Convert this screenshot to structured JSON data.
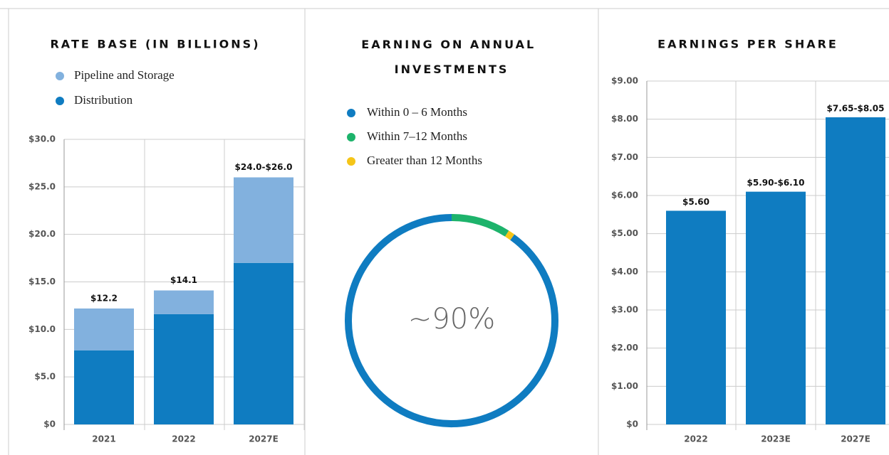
{
  "chart_data": [
    {
      "type": "stacked-bar",
      "title": "RATE BASE (IN BILLIONS)",
      "categories": [
        "2021",
        "2022",
        "2027E"
      ],
      "series": [
        {
          "name": "Pipeline and Storage",
          "color": "#82b1de",
          "values": [
            4.4,
            2.5,
            9.0
          ]
        },
        {
          "name": "Distribution",
          "color": "#0f7cc1",
          "values": [
            7.8,
            11.6,
            17.0
          ]
        }
      ],
      "totals": [
        12.2,
        14.1,
        26.0
      ],
      "total_labels": [
        "$12.2",
        "$14.1",
        "$24.0-$26.0"
      ],
      "ylim": [
        0,
        30
      ],
      "yticks": [
        {
          "value": 0,
          "label": "$0"
        },
        {
          "value": 5,
          "label": "$5.0"
        },
        {
          "value": 10,
          "label": "$10.0"
        },
        {
          "value": 15,
          "label": "$15.0"
        },
        {
          "value": 20,
          "label": "$20.0"
        },
        {
          "value": 25,
          "label": "$25.0"
        },
        {
          "value": 30,
          "label": "$30.0"
        }
      ],
      "grid": true
    },
    {
      "type": "donut",
      "title": "EARNING ON ANNUAL INVESTMENTS",
      "categories": [
        "Within 0 – 6 Months",
        "Within 7–12 Months",
        "Greater than 12 Months"
      ],
      "values": [
        90,
        9,
        1
      ],
      "colors": [
        "#0f7cc1",
        "#1db36b",
        "#f5c518"
      ],
      "center_label": "~90%"
    },
    {
      "type": "bar",
      "title": "EARNINGS PER SHARE",
      "categories": [
        "2022",
        "2023E",
        "2027E"
      ],
      "values": [
        5.6,
        6.1,
        8.05
      ],
      "value_labels": [
        "$5.60",
        "$5.90-$6.10",
        "$7.65-$8.05"
      ],
      "color": "#0f7cc1",
      "ylim": [
        0,
        9
      ],
      "yticks": [
        {
          "value": 0,
          "label": "$0"
        },
        {
          "value": 1,
          "label": "$1.00"
        },
        {
          "value": 2,
          "label": "$2.00"
        },
        {
          "value": 3,
          "label": "$3.00"
        },
        {
          "value": 4,
          "label": "$4.00"
        },
        {
          "value": 5,
          "label": "$5.00"
        },
        {
          "value": 6,
          "label": "$6.00"
        },
        {
          "value": 7,
          "label": "$7.00"
        },
        {
          "value": 8,
          "label": "$8.00"
        },
        {
          "value": 9,
          "label": "$9.00"
        }
      ],
      "grid": true
    }
  ]
}
